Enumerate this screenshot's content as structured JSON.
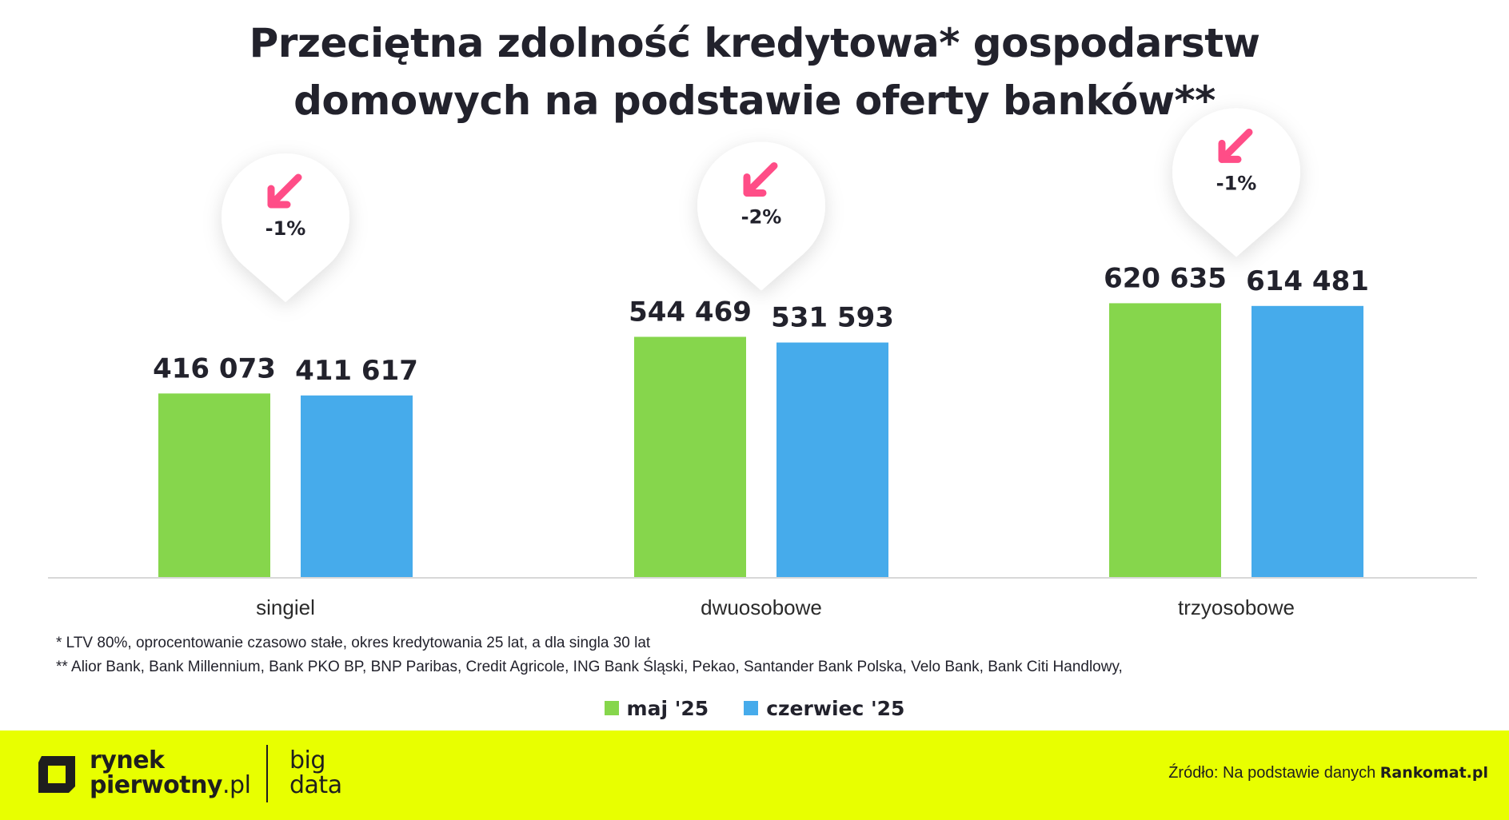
{
  "chart_data": {
    "type": "bar",
    "title_lines": [
      "Przeciętna zdolność kredytowa* gospodarstw",
      "domowych na podstawie oferty banków**"
    ],
    "categories": [
      "singiel",
      "dwuosobowe",
      "trzyosobowe"
    ],
    "series": [
      {
        "name": "maj '25",
        "color": "#86d64c",
        "values": [
          416073,
          544469,
          620635
        ],
        "labels": [
          "416 073",
          "544 469",
          "620 635"
        ]
      },
      {
        "name": "czerwiec '25",
        "color": "#46abeb",
        "values": [
          411617,
          531593,
          614481
        ],
        "labels": [
          "411 617",
          "531 593",
          "614 481"
        ]
      }
    ],
    "changes": [
      "-1%",
      "-2%",
      "-1%"
    ],
    "change_icon": "arrow-down-left-icon",
    "change_color": "#ff4d87",
    "ylim": [
      0,
      760000
    ],
    "grid": false,
    "legend_position": "bottom-center"
  },
  "footnotes": [
    "* LTV 80%, oprocentowanie czasowo stałe, okres kredytowania 25 lat, a dla singla 30 lat",
    "** Alior Bank, Bank Millennium, Bank PKO BP, BNP Paribas, Credit Agricole, ING Bank Śląski, Pekao, Santander Bank Polska, Velo Bank, Bank Citi Handlowy,"
  ],
  "footer": {
    "background": "#e8ff00",
    "logo_icon": "rynek-pierwotny-logo-icon",
    "brand_line1": "rynek",
    "brand_line2": "pierwotny",
    "brand_tld": ".pl",
    "bigdata_line1": "big",
    "bigdata_line2": "data",
    "source_prefix": "Źródło: Na podstawie danych",
    "source_name": "Rankomat.pl"
  }
}
